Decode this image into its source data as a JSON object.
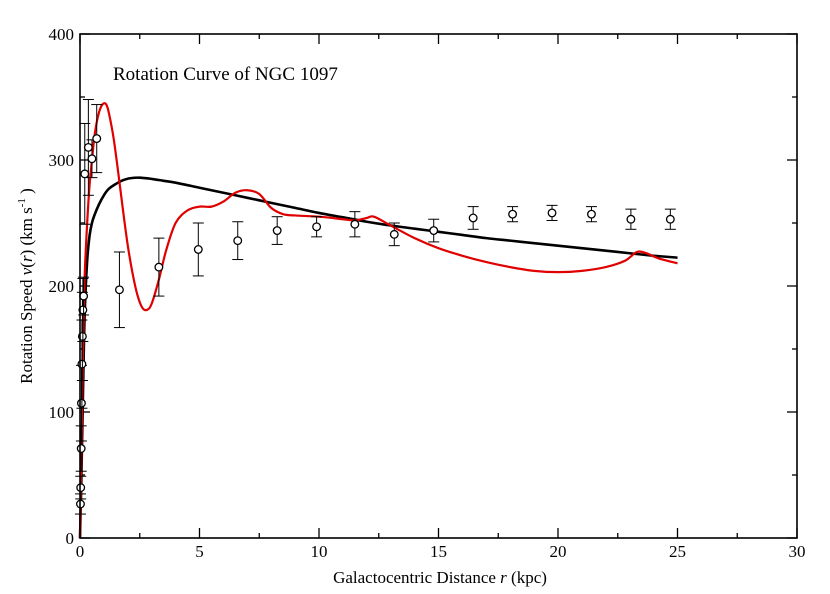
{
  "chart_data": {
    "type": "scatter",
    "title": "Rotation Curve of NGC 1097",
    "xlabel": {
      "prefix": "Galactocentric Distance ",
      "var": "r",
      "suffix": " (kpc)"
    },
    "ylabel": {
      "prefix": "Rotation Speed ",
      "var": "v",
      "mid": "(",
      "var2": "r",
      "after": ") (km s",
      "sup": "-1",
      "end": " )"
    },
    "xlim": [
      0,
      30
    ],
    "ylim": [
      0,
      400
    ],
    "xticks": [
      0,
      5,
      10,
      15,
      20,
      25,
      30
    ],
    "yticks": [
      0,
      100,
      200,
      300,
      400
    ],
    "xtick_labels": [
      "0",
      "5",
      "10",
      "15",
      "20",
      "25",
      "30"
    ],
    "ytick_labels": [
      "0",
      "100",
      "200",
      "300",
      "400"
    ],
    "colors": {
      "observed": "#000000",
      "black_curve": "#000000",
      "red_curve": "#e00000"
    },
    "series": [
      {
        "name": "observed",
        "kind": "points_with_errorbars",
        "points": [
          {
            "x": 0.02,
            "y": 27,
            "err": 8
          },
          {
            "x": 0.03,
            "y": 40,
            "err": 9
          },
          {
            "x": 0.05,
            "y": 71,
            "err": 18
          },
          {
            "x": 0.06,
            "y": 107,
            "err": 30
          },
          {
            "x": 0.08,
            "y": 138,
            "err": 35
          },
          {
            "x": 0.1,
            "y": 160,
            "err": 35
          },
          {
            "x": 0.12,
            "y": 181,
            "err": 25
          },
          {
            "x": 0.15,
            "y": 192,
            "err": 15
          },
          {
            "x": 0.2,
            "y": 289,
            "err": 40
          },
          {
            "x": 0.35,
            "y": 310,
            "err": 38
          },
          {
            "x": 0.5,
            "y": 301,
            "err": 15
          },
          {
            "x": 0.7,
            "y": 317,
            "err": 27
          },
          {
            "x": 1.65,
            "y": 197,
            "err": 30
          },
          {
            "x": 3.3,
            "y": 215,
            "err": 23
          },
          {
            "x": 4.95,
            "y": 229,
            "err": 21
          },
          {
            "x": 6.6,
            "y": 236,
            "err": 15
          },
          {
            "x": 8.25,
            "y": 244,
            "err": 11
          },
          {
            "x": 9.9,
            "y": 247,
            "err": 8
          },
          {
            "x": 11.5,
            "y": 249,
            "err": 10
          },
          {
            "x": 13.15,
            "y": 241,
            "err": 9
          },
          {
            "x": 14.8,
            "y": 244,
            "err": 9
          },
          {
            "x": 16.45,
            "y": 254,
            "err": 9
          },
          {
            "x": 18.1,
            "y": 257,
            "err": 6
          },
          {
            "x": 19.75,
            "y": 258,
            "err": 6
          },
          {
            "x": 21.4,
            "y": 257,
            "err": 6
          },
          {
            "x": 23.05,
            "y": 253,
            "err": 8
          },
          {
            "x": 24.7,
            "y": 253,
            "err": 8
          }
        ]
      },
      {
        "name": "black curve",
        "kind": "line",
        "x": [
          0,
          0.05,
          0.1,
          0.15,
          0.2,
          0.3,
          0.4,
          0.5,
          0.6,
          0.8,
          1.0,
          1.2,
          1.5,
          1.8,
          2.1,
          2.5,
          3.0,
          3.5,
          4.0,
          5.0,
          6.0,
          7.0,
          8.0,
          9.0,
          10.0,
          11.0,
          12.0,
          13.0,
          14.0,
          15.0,
          16.0,
          17.0,
          18.0,
          19.0,
          20.0,
          21.0,
          22.0,
          23.0,
          24.0,
          25.0
        ],
        "y": [
          0,
          40,
          90,
          140,
          180,
          220,
          240,
          250,
          256,
          265,
          272,
          277,
          281,
          284,
          285.5,
          286,
          285,
          283.5,
          282,
          278,
          274,
          270,
          266,
          262,
          258,
          254.5,
          251,
          248,
          245.5,
          243,
          240.5,
          238,
          236,
          234,
          232,
          230,
          228,
          226,
          224,
          222.5
        ]
      },
      {
        "name": "red curve",
        "kind": "line",
        "x": [
          0,
          0.02,
          0.05,
          0.1,
          0.15,
          0.2,
          0.3,
          0.4,
          0.5,
          0.6,
          0.7,
          0.8,
          0.9,
          1.0,
          1.1,
          1.2,
          1.4,
          1.6,
          1.8,
          2.0,
          2.2,
          2.4,
          2.6,
          2.8,
          3.0,
          3.3,
          3.6,
          4.0,
          4.5,
          5.0,
          5.5,
          6.0,
          6.5,
          7.0,
          7.5,
          8.0,
          8.5,
          9.0,
          10.0,
          11.0,
          11.5,
          12.0,
          12.3,
          13.0,
          14.0,
          15.0,
          16.0,
          17.0,
          18.0,
          19.0,
          20.0,
          21.0,
          22.0,
          22.8,
          23.3,
          23.7,
          24.2,
          25.0
        ],
        "y": [
          0,
          20,
          60,
          120,
          170,
          210,
          250,
          280,
          300,
          318,
          330,
          338,
          343,
          345,
          344,
          338,
          318,
          290,
          260,
          232,
          210,
          193,
          183,
          181,
          186,
          205,
          228,
          250,
          260,
          263,
          263,
          267,
          274,
          276,
          273,
          262,
          257,
          256,
          255,
          253,
          252,
          254,
          255,
          248,
          238,
          230,
          224,
          219,
          215,
          212,
          211,
          212,
          215,
          220,
          227,
          226,
          222,
          218
        ]
      }
    ]
  }
}
